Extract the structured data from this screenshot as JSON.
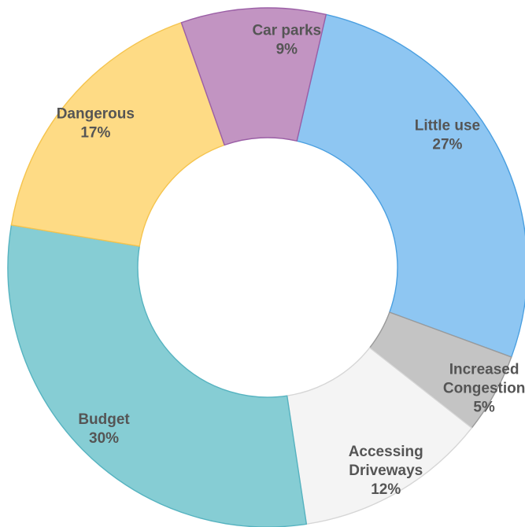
{
  "chart_data": {
    "type": "pie",
    "variant": "donut",
    "slices": [
      {
        "label": "Little use",
        "value": 27,
        "value_label": "27%",
        "color": "#8ec6f2",
        "stroke": "#4a9fe0",
        "label_color": "#555555"
      },
      {
        "label": "Increased Congestion",
        "value": 5,
        "value_label": "5%",
        "color": "#c4c4c4",
        "stroke": "#9a9a9a",
        "label_color": "#555555"
      },
      {
        "label": "Accessing Driveways",
        "value": 12,
        "value_label": "12%",
        "color": "#f4f4f4",
        "stroke": "#d6d6d6",
        "label_color": "#555555"
      },
      {
        "label": "Budget",
        "value": 30,
        "value_label": "30%",
        "color": "#86cdd4",
        "stroke": "#56b3c0",
        "label_color": "#555555"
      },
      {
        "label": "Dangerous",
        "value": 17,
        "value_label": "17%",
        "color": "#fedb85",
        "stroke": "#f5c44e",
        "label_color": "#555555"
      },
      {
        "label": "Car parks",
        "value": 9,
        "value_label": "9%",
        "color": "#c294c2",
        "stroke": "#9b5fa6",
        "label_color": "#555555"
      }
    ],
    "start_angle_deg": 13,
    "direction": "clockwise",
    "legend": "none"
  }
}
